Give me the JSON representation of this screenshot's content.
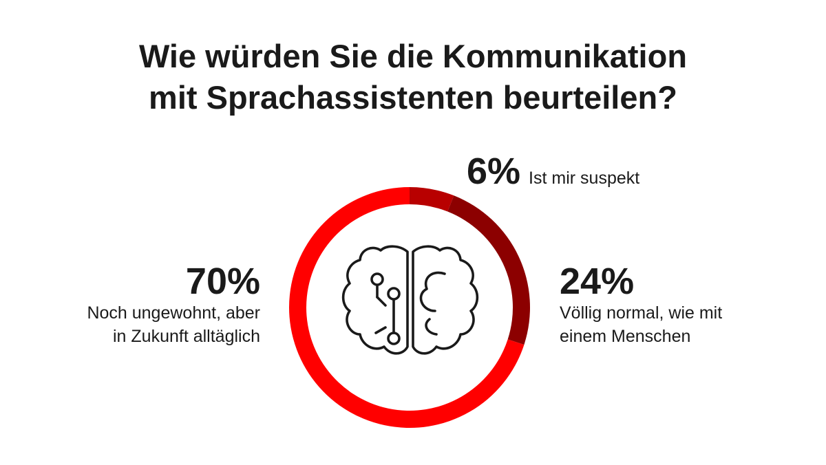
{
  "title": {
    "line1": "Wie würden Sie die Kommunikation",
    "line2": "mit Sprachassistenten beurteilen?"
  },
  "icon": "brain-circuit-icon",
  "colors": {
    "suspekt": "#b80000",
    "normal": "#8c0000",
    "ungewohnt": "#ff0000",
    "text": "#1a1a1a"
  },
  "chart_data": {
    "type": "pie",
    "variant": "donut",
    "title": "Wie würden Sie die Kommunikation mit Sprachassistenten beurteilen?",
    "slices": [
      {
        "label": "Ist mir suspekt",
        "value": 6,
        "value_label": "6%",
        "color": "#b80000"
      },
      {
        "label": "Völlig normal, wie mit einem Menschen",
        "value": 24,
        "value_label": "24%",
        "color": "#8c0000"
      },
      {
        "label": "Noch ungewohnt, aber in Zukunft alltäglich",
        "value": 70,
        "value_label": "70%",
        "color": "#ff0000"
      }
    ]
  },
  "labels": {
    "top": {
      "pct": "6%",
      "line1": "Ist mir suspekt"
    },
    "right": {
      "pct": "24%",
      "line1": "Völlig normal, wie mit",
      "line2": "einem Menschen"
    },
    "left": {
      "pct": "70%",
      "line1": "Noch ungewohnt, aber",
      "line2": "in Zukunft alltäglich"
    }
  }
}
